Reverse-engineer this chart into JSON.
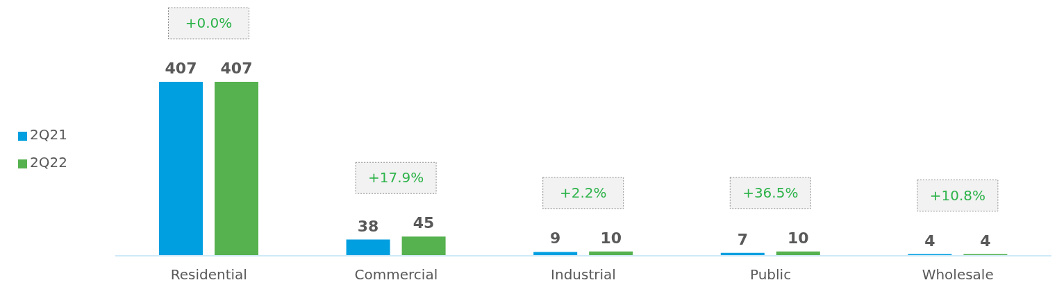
{
  "chart_data": {
    "type": "bar",
    "categories": [
      "Residential",
      "Commercial",
      "Industrial",
      "Public",
      "Wholesale"
    ],
    "series": [
      {
        "name": "2Q21",
        "color": "#009fe0",
        "values": [
          407,
          38,
          9,
          7,
          4
        ]
      },
      {
        "name": "2Q22",
        "color": "#56b14f",
        "values": [
          407,
          45,
          10,
          10,
          4
        ]
      }
    ],
    "data_labels": true,
    "legend": "left",
    "grid": false,
    "annotations": [
      "+0.0%",
      "+17.9%",
      "+2.2%",
      "+36.5%",
      "+10.8%"
    ]
  }
}
